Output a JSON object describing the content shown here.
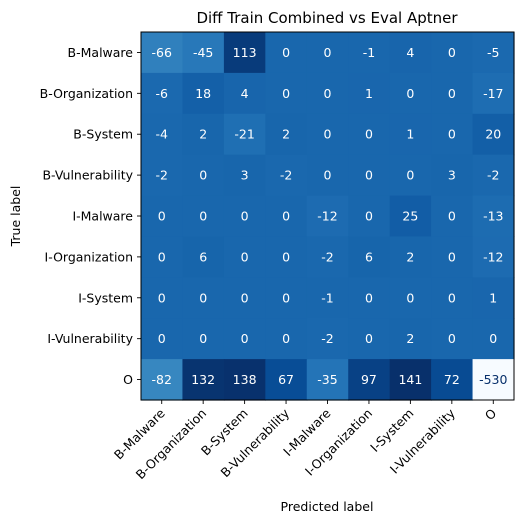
{
  "chart_data": {
    "type": "heatmap",
    "title": "Diff Train Combined vs Eval Aptner",
    "xlabel": "Predicted label",
    "ylabel": "True label",
    "row_labels": [
      "B-Malware",
      "B-Organization",
      "B-System",
      "B-Vulnerability",
      "I-Malware",
      "I-Organization",
      "I-System",
      "I-Vulnerability",
      "O"
    ],
    "col_labels": [
      "B-Malware",
      "B-Organization",
      "B-System",
      "B-Vulnerability",
      "I-Malware",
      "I-Organization",
      "I-System",
      "I-Vulnerability",
      "O"
    ],
    "values": [
      [
        -66,
        -45,
        113,
        0,
        0,
        -1,
        4,
        0,
        -5
      ],
      [
        -6,
        18,
        4,
        0,
        0,
        1,
        0,
        0,
        -17
      ],
      [
        -4,
        2,
        -21,
        2,
        0,
        0,
        1,
        0,
        20
      ],
      [
        -2,
        0,
        3,
        -2,
        0,
        0,
        0,
        3,
        -2
      ],
      [
        0,
        0,
        0,
        0,
        -12,
        0,
        25,
        0,
        -13
      ],
      [
        0,
        6,
        0,
        0,
        -2,
        6,
        2,
        0,
        -12
      ],
      [
        0,
        0,
        0,
        0,
        -1,
        0,
        0,
        0,
        1
      ],
      [
        0,
        0,
        0,
        0,
        -2,
        0,
        2,
        0,
        0
      ],
      [
        -82,
        132,
        138,
        67,
        -35,
        97,
        141,
        72,
        -530
      ]
    ],
    "colormap": "Blues",
    "value_range": [
      -530,
      141
    ],
    "colors": {
      "cmap_stops": [
        "#f7fbff",
        "#deebf7",
        "#c6dbef",
        "#9ecae1",
        "#6baed6",
        "#4292c6",
        "#2171b5",
        "#08519c",
        "#08306b"
      ],
      "text_light": "#ffffff",
      "text_dark": "#08306b",
      "frame": "#000000"
    },
    "grid": false
  }
}
